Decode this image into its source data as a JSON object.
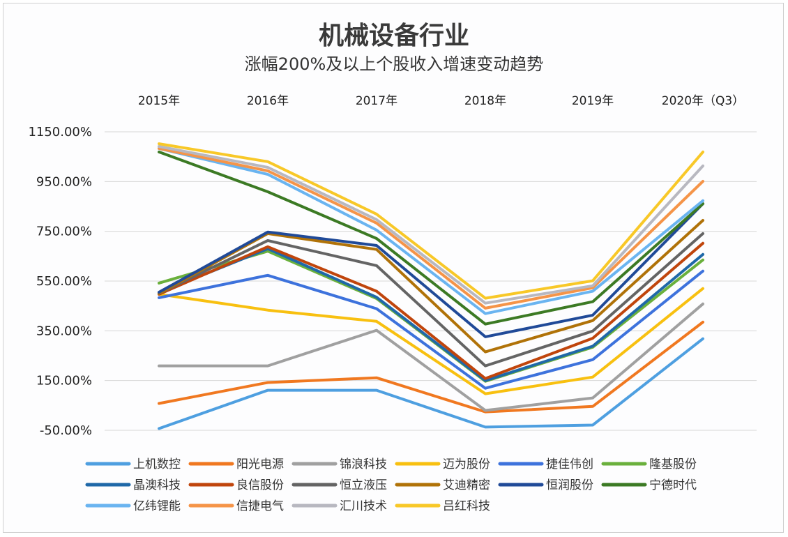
{
  "chart_data": {
    "type": "line",
    "title": "机械设备行业",
    "subtitle": "涨幅200%及以上个股收入增速变动趋势",
    "categories": [
      "2015年",
      "2016年",
      "2017年",
      "2018年",
      "2019年",
      "2020年（Q3）"
    ],
    "y_unit": "%",
    "ylim": [
      -50,
      1150
    ],
    "yticks": [
      -50,
      150,
      350,
      550,
      750,
      950,
      1150
    ],
    "ytick_labels": [
      "-50.00%",
      "150.00%",
      "350.00%",
      "550.00%",
      "750.00%",
      "950.00%",
      "1150.00%"
    ],
    "grid": true,
    "legend_position": "bottom",
    "series": [
      {
        "name": "上机数控",
        "color": "#4e9fe0",
        "values": [
          -43,
          111,
          111,
          -37,
          -29,
          318
        ]
      },
      {
        "name": "阳光电源",
        "color": "#f07820",
        "values": [
          58,
          142,
          161,
          24,
          46,
          385
        ]
      },
      {
        "name": "锦浪科技",
        "color": "#a0a0a0",
        "values": [
          209,
          209,
          352,
          30,
          80,
          458
        ]
      },
      {
        "name": "迈为股份",
        "color": "#f8c010",
        "values": [
          497,
          433,
          388,
          97,
          164,
          520
        ]
      },
      {
        "name": "捷佳伟创",
        "color": "#3d72dc",
        "values": [
          483,
          573,
          439,
          119,
          234,
          590
        ]
      },
      {
        "name": "隆基股份",
        "color": "#6ab03c",
        "values": [
          542,
          670,
          480,
          147,
          284,
          635
        ]
      },
      {
        "name": "晶澳科技",
        "color": "#1f68a8",
        "values": [
          503,
          680,
          485,
          150,
          288,
          657
        ]
      },
      {
        "name": "良信股份",
        "color": "#c0450c",
        "values": [
          497,
          688,
          509,
          158,
          320,
          702
        ]
      },
      {
        "name": "恒立液压",
        "color": "#646464",
        "values": [
          500,
          713,
          612,
          209,
          349,
          741
        ]
      },
      {
        "name": "艾迪精密",
        "color": "#b07208",
        "values": [
          500,
          741,
          677,
          265,
          391,
          794
        ]
      },
      {
        "name": "恒润股份",
        "color": "#204a98",
        "values": [
          505,
          747,
          693,
          326,
          413,
          861
        ]
      },
      {
        "name": "宁德时代",
        "color": "#3c7a24",
        "values": [
          1069,
          909,
          721,
          377,
          467,
          861
        ]
      },
      {
        "name": "亿纬锂能",
        "color": "#6ab4f0",
        "values": [
          1083,
          979,
          755,
          419,
          509,
          873
        ]
      },
      {
        "name": "信捷电气",
        "color": "#f59448",
        "values": [
          1083,
          993,
          783,
          441,
          523,
          951
        ]
      },
      {
        "name": "汇川技术",
        "color": "#b8b8c0",
        "values": [
          1091,
          1007,
          797,
          461,
          531,
          1013
        ]
      },
      {
        "name": "吕红科技",
        "color": "#f8c828",
        "values": [
          1102,
          1030,
          819,
          481,
          551,
          1069
        ]
      }
    ]
  }
}
